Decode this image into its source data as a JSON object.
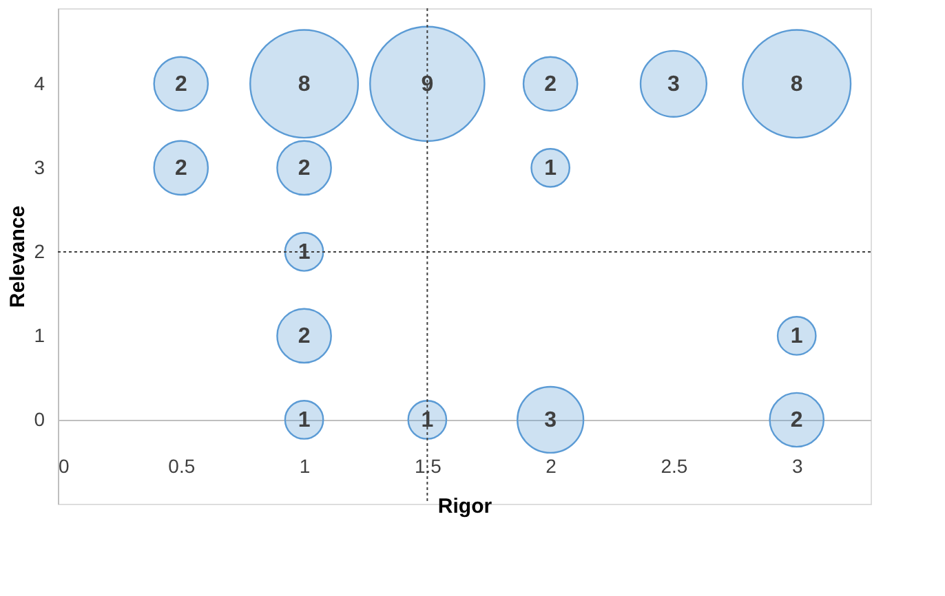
{
  "chart_data": {
    "type": "bubble",
    "xlabel": "Rigor",
    "ylabel": "Relevance",
    "xlim": [
      0,
      3.3
    ],
    "ylim": [
      -1,
      4.9
    ],
    "xticks": [
      0,
      0.5,
      1,
      1.5,
      2,
      2.5,
      3
    ],
    "yticks": [
      0,
      1,
      2,
      3,
      4
    ],
    "grid": false,
    "annotations": [
      {
        "text": "2",
        "x": 0.5,
        "y": 4
      },
      {
        "text": "8",
        "x": 1,
        "y": 4
      },
      {
        "text": "9",
        "x": 1.5,
        "y": 4
      },
      {
        "text": "2",
        "x": 2,
        "y": 4
      },
      {
        "text": "3",
        "x": 2.5,
        "y": 4
      },
      {
        "text": "8",
        "x": 3,
        "y": 4
      },
      {
        "text": "2",
        "x": 0.5,
        "y": 3
      },
      {
        "text": "2",
        "x": 1,
        "y": 3
      },
      {
        "text": "1",
        "x": 2,
        "y": 3
      },
      {
        "text": "1",
        "x": 1,
        "y": 2
      },
      {
        "text": "2",
        "x": 1,
        "y": 1
      },
      {
        "text": "1",
        "x": 3,
        "y": 1
      },
      {
        "text": "1",
        "x": 1,
        "y": 0
      },
      {
        "text": "1",
        "x": 1.5,
        "y": 0
      },
      {
        "text": "3",
        "x": 2,
        "y": 0
      },
      {
        "text": "2",
        "x": 3,
        "y": 0
      }
    ],
    "ref_lines": [
      {
        "axis": "x",
        "value": 1.5,
        "color": "#404040",
        "line_style": "dotted"
      },
      {
        "axis": "y",
        "value": 2,
        "color": "#404040",
        "line_style": "dotted"
      }
    ],
    "series": [
      {
        "color": "#5b9bd5",
        "x": [
          0.5,
          1,
          1.5,
          2,
          2.5,
          3,
          0.5,
          1,
          2,
          1,
          1,
          3,
          1,
          1.5,
          2,
          3
        ],
        "values": [
          4,
          4,
          4,
          4,
          4,
          4,
          3,
          3,
          3,
          2,
          1,
          1,
          0,
          0,
          0,
          0
        ],
        "sizes": [
          0.222,
          0.889,
          1,
          0.222,
          0.333,
          0.889,
          0.222,
          0.222,
          0.111,
          0.111,
          0.222,
          0.111,
          0.111,
          0.111,
          0.333,
          0.222
        ]
      }
    ]
  }
}
